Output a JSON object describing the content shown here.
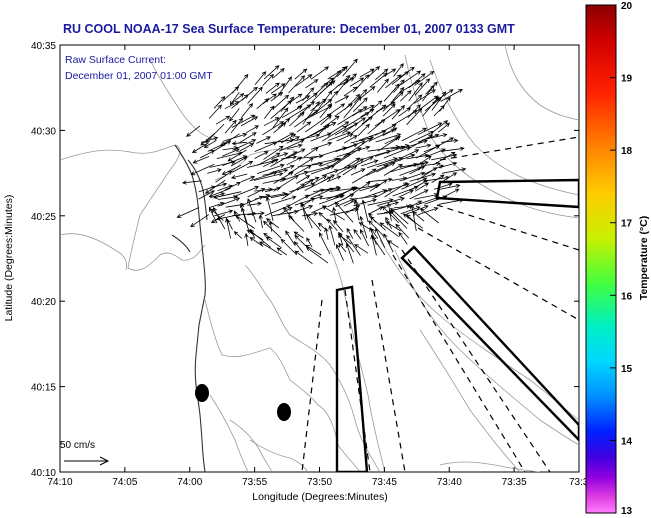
{
  "title": "RU COOL  NOAA-17  Sea Surface Temperature:  December 01, 2007 0133 GMT",
  "current_label_line1": "Raw Surface Current:",
  "current_label_line2": "December 01, 2007 01:00 GMT",
  "scale_label": "50 cm/s",
  "xlabel": "Longitude (Degrees:Minutes)",
  "ylabel": "Latitude (Degrees:Minutes)",
  "x_ticks": [
    "74:10",
    "74:05",
    "74:00",
    "73:55",
    "73:50",
    "73:45",
    "73:40",
    "73:35",
    "73:3"
  ],
  "y_ticks": [
    "40:35",
    "40:30",
    "40:25",
    "40:20",
    "40:15",
    "40:10"
  ],
  "colorbar": {
    "label": "Temperature (°C)",
    "ticks": [
      "20",
      "19",
      "18",
      "17",
      "16",
      "15",
      "14",
      "13"
    ],
    "range": [
      13,
      20
    ]
  },
  "colors": {
    "title_text": "#1a1aa0",
    "contour": "#9a9a9a",
    "arrows": "#000000",
    "background": "#ffffff"
  }
}
